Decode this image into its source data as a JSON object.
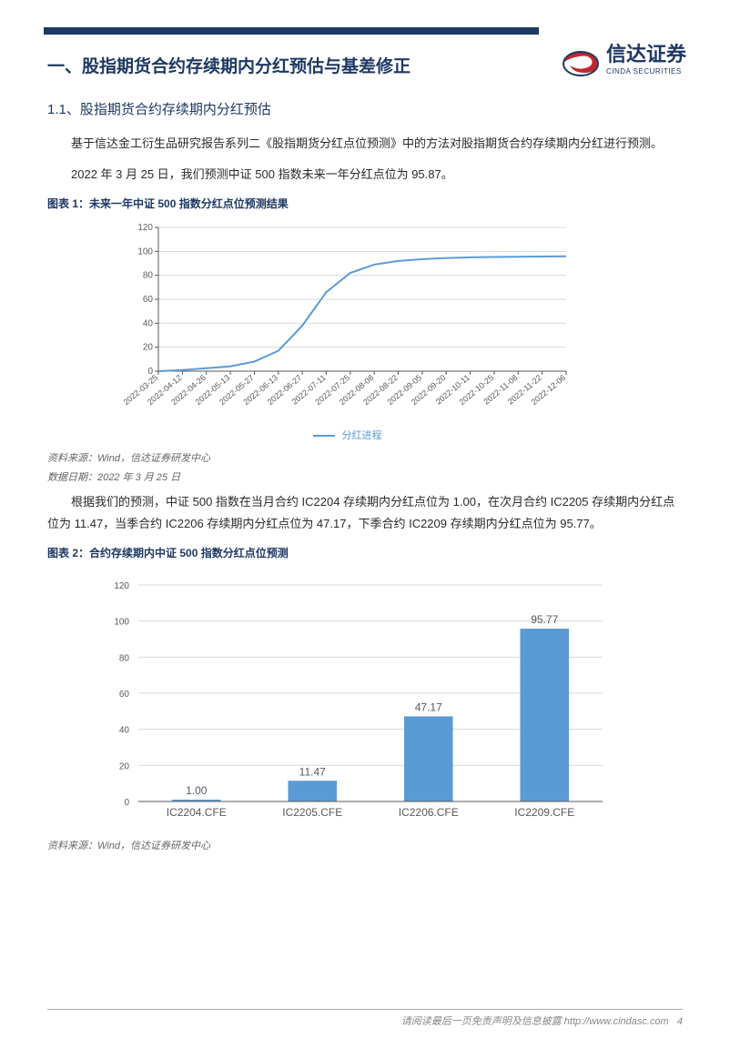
{
  "brand": {
    "name_cn": "信达证券",
    "name_en": "CINDA SECURITIES",
    "logo_colors": {
      "red": "#c1272d",
      "blue": "#1f3864"
    }
  },
  "section_title": "一、股指期货合约存续期内分红预估与基差修正",
  "subsection_title": "1.1、股指期货合约存续期内分红预估",
  "para1": "基于信达金工衍生品研究报告系列二《股指期货分红点位预测》中的方法对股指期货合约存续期内分红进行预测。",
  "para2": "2022 年 3 月 25 日，我们预测中证 500 指数未来一年分红点位为 95.87。",
  "chart1": {
    "title": "图表 1：未来一年中证 500 指数分红点位预测结果",
    "type": "line",
    "legend_label": "分红进程",
    "ylim": [
      0,
      120
    ],
    "yticks": [
      0,
      20,
      40,
      60,
      80,
      100,
      120
    ],
    "x_labels": [
      "2022-03-25",
      "2022-04-12",
      "2022-04-26",
      "2022-05-13",
      "2022-05-27",
      "2022-06-13",
      "2022-06-27",
      "2022-07-11",
      "2022-07-25",
      "2022-08-08",
      "2022-08-22",
      "2022-09-05",
      "2022-09-20",
      "2022-10-11",
      "2022-10-25",
      "2022-11-08",
      "2022-11-22",
      "2022-12-06"
    ],
    "values": [
      0,
      1,
      2.5,
      4,
      8,
      17,
      38,
      66,
      82,
      89,
      92,
      93.5,
      94.5,
      95,
      95.3,
      95.5,
      95.7,
      95.87
    ],
    "line_color": "#5b9bd5",
    "grid_color": "#d9d9d9",
    "axis_color": "#595959",
    "background_color": "#ffffff"
  },
  "source1": "资料来源：Wind，信达证券研发中心",
  "date1": "数据日期：2022 年 3 月 25 日",
  "para3": "根据我们的预测，中证 500 指数在当月合约 IC2204 存续期内分红点位为 1.00，在次月合约 IC2205 存续期内分红点位为 11.47，当季合约 IC2206 存续期内分红点位为 47.17，下季合约 IC2209 存续期内分红点位为 95.77。",
  "chart2": {
    "title": "图表 2：合约存续期内中证 500 指数分红点位预测",
    "type": "bar",
    "categories": [
      "IC2204.CFE",
      "IC2205.CFE",
      "IC2206.CFE",
      "IC2209.CFE"
    ],
    "values": [
      1.0,
      11.47,
      47.17,
      95.77
    ],
    "value_labels": [
      "1.00",
      "11.47",
      "47.17",
      "95.77"
    ],
    "ylim": [
      0,
      120
    ],
    "yticks": [
      0,
      20,
      40,
      60,
      80,
      100,
      120
    ],
    "bar_color": "#5b9bd5",
    "grid_color": "#d9d9d9",
    "axis_color": "#595959",
    "background_color": "#ffffff",
    "bar_width": 0.42
  },
  "source2": "资料来源：Wind，信达证券研发中心",
  "footer": {
    "disclaimer": "请阅读最后一页免责声明及信息披露",
    "url": "http://www.cindasc.com",
    "page": "4"
  }
}
